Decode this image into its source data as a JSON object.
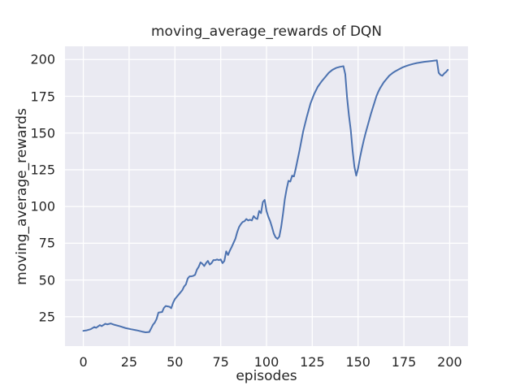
{
  "chart_data": {
    "type": "line",
    "title": "moving_average_rewards of DQN",
    "xlabel": "episodes",
    "ylabel": "moving_average_rewards",
    "x_ticks": [
      0,
      25,
      50,
      75,
      100,
      125,
      150,
      175,
      200
    ],
    "y_ticks": [
      25,
      50,
      75,
      100,
      125,
      150,
      175,
      200
    ],
    "xlim": [
      -10,
      210
    ],
    "ylim": [
      5,
      209
    ],
    "grid": true,
    "legend_position": "none",
    "colors": {
      "line": "#4c72b0",
      "plot_bg": "#eaeaf2",
      "grid": "#ffffff",
      "text": "#262626",
      "figure_bg": "#ffffff"
    },
    "series": [
      {
        "name": "DQN moving average reward",
        "x": [
          0,
          2,
          4,
          6,
          7,
          9,
          10,
          12,
          13,
          15,
          17,
          20,
          23,
          26,
          29,
          32,
          34,
          36,
          37,
          38,
          39,
          40,
          41,
          43,
          44,
          45,
          47,
          48,
          49,
          50,
          51,
          52,
          53,
          54,
          55,
          56,
          57,
          58,
          59,
          60,
          61,
          62,
          63,
          64,
          65,
          66,
          67,
          68,
          69,
          70,
          71,
          72,
          73,
          74,
          75,
          76,
          77,
          78,
          79,
          80,
          81,
          83,
          84,
          85,
          86,
          87,
          88,
          89,
          90,
          91,
          92,
          93,
          94,
          95,
          96,
          97,
          98,
          99,
          100,
          101,
          102,
          103,
          104,
          105,
          106,
          107,
          108,
          109,
          110,
          111,
          112,
          113,
          114,
          115,
          116,
          118,
          120,
          122,
          124,
          126,
          128,
          130,
          132,
          134,
          136,
          138,
          140,
          142,
          143,
          144,
          145,
          146,
          147,
          148,
          149,
          150,
          151,
          152,
          153,
          154,
          155,
          156,
          157,
          158,
          159,
          160,
          161,
          162,
          163,
          164,
          165,
          166,
          167,
          168,
          169,
          170,
          172,
          174,
          176,
          178,
          180,
          182,
          184,
          186,
          188,
          190,
          192,
          193,
          194,
          195,
          196,
          197,
          198,
          199
        ],
        "y": [
          15.4,
          15.8,
          16.5,
          18,
          17.5,
          19.3,
          18.6,
          20.2,
          19.8,
          20.4,
          19.5,
          18.5,
          17.3,
          16.5,
          15.8,
          14.9,
          14.4,
          14.6,
          17,
          19.5,
          21,
          23.5,
          27.8,
          28.2,
          31,
          32.3,
          31.8,
          30.8,
          34.5,
          37,
          38.5,
          40,
          41.5,
          43,
          45.5,
          47,
          51,
          52.5,
          52.5,
          52.8,
          53.5,
          57,
          59,
          62,
          61,
          59.5,
          61.5,
          63,
          60.5,
          61.5,
          63.5,
          63.5,
          64,
          63.5,
          64,
          61.5,
          63,
          69.5,
          67,
          70,
          72.5,
          78,
          82.5,
          86,
          88,
          89.5,
          90,
          91.5,
          90.5,
          91,
          90.5,
          93.5,
          92,
          91.5,
          97,
          95.5,
          103,
          104.5,
          97,
          93,
          90,
          86,
          81.5,
          79,
          78,
          79.5,
          86,
          95,
          105,
          112,
          117.5,
          117,
          121,
          120.5,
          126,
          138,
          151,
          161,
          170,
          176.5,
          181.5,
          185,
          188,
          191,
          193,
          194.3,
          195,
          195.5,
          190,
          174,
          162,
          152,
          138,
          127,
          121,
          126,
          133,
          139,
          144.5,
          149.5,
          154,
          158.5,
          163,
          167,
          171,
          175,
          178,
          180.5,
          182.5,
          184.5,
          186,
          187.5,
          189,
          190,
          191,
          191.8,
          193.2,
          194.5,
          195.5,
          196.3,
          197,
          197.6,
          198,
          198.4,
          198.7,
          199,
          199.3,
          199.5,
          191,
          189.5,
          189,
          190.5,
          191.5,
          193
        ]
      }
    ]
  }
}
